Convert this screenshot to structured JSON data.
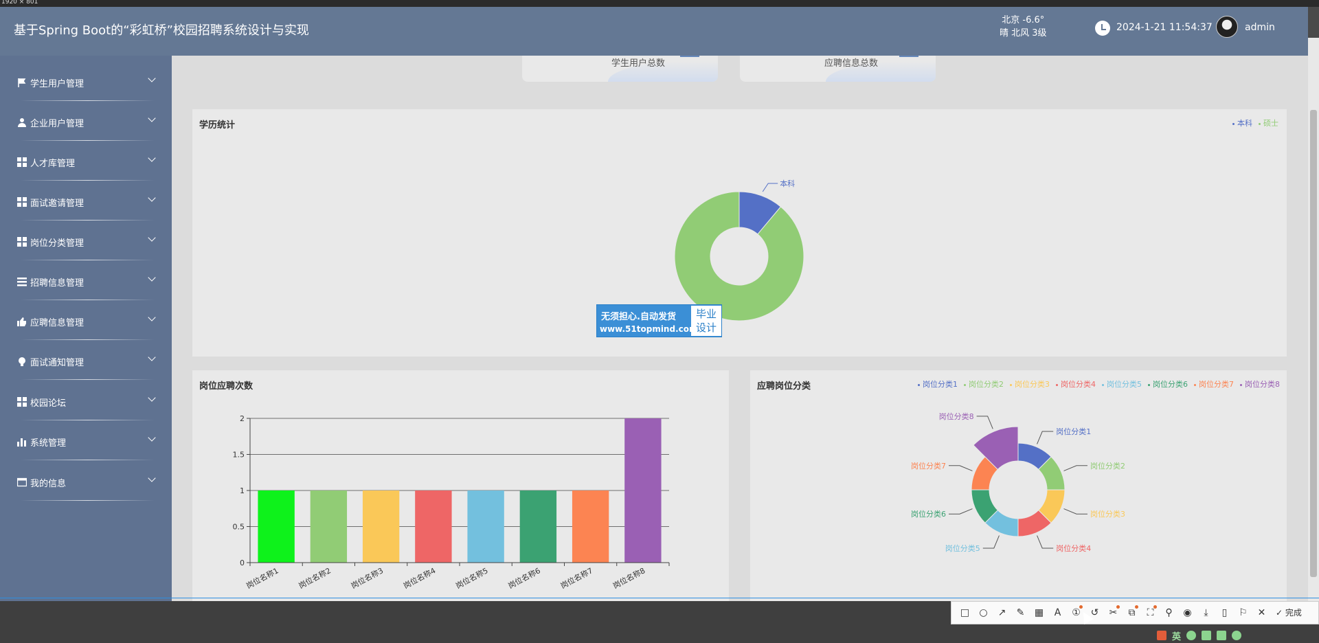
{
  "screen": {
    "size_label": "1920 × 801"
  },
  "header": {
    "title": "基于Spring Boot的“彩虹桥”校园招聘系统设计与实现",
    "weather_city_temp": "北京  -6.6°",
    "weather_desc": "晴  北风  3级",
    "datetime": "2024-1-21 11:54:37",
    "username": "admin"
  },
  "sidebar": {
    "items": [
      {
        "label": "学生用户管理",
        "icon": "flag-icon"
      },
      {
        "label": "企业用户管理",
        "icon": "user-icon"
      },
      {
        "label": "人才库管理",
        "icon": "grid-icon"
      },
      {
        "label": "面试邀请管理",
        "icon": "grid-icon"
      },
      {
        "label": "岗位分类管理",
        "icon": "grid-icon"
      },
      {
        "label": "招聘信息管理",
        "icon": "list-icon"
      },
      {
        "label": "应聘信息管理",
        "icon": "thumb-icon"
      },
      {
        "label": "面试通知管理",
        "icon": "bulb-icon"
      },
      {
        "label": "校园论坛",
        "icon": "grid-icon"
      },
      {
        "label": "系统管理",
        "icon": "bar-chart-icon"
      },
      {
        "label": "我的信息",
        "icon": "card-icon"
      }
    ]
  },
  "stats": {
    "student_total_label": "学生用户总数",
    "recruit_total_label": "应聘信息总数"
  },
  "watermark": {
    "line1": "无须担心.自动发货",
    "line2": "www.51topmind.com",
    "badge": "毕业设计"
  },
  "toolbar": {
    "tools": [
      "rect-icon",
      "circle-icon",
      "arrow-icon",
      "pen-icon",
      "mosaic-icon",
      "text-icon",
      "number-icon",
      "undo-icon",
      "cut-icon",
      "copy-icon",
      "scan-icon",
      "pin-icon",
      "record-icon",
      "download-icon",
      "bookmark-icon",
      "flag-icon",
      "close-icon"
    ],
    "done_label": "完成"
  },
  "taskbar": {
    "ime": "英"
  },
  "colors": {
    "header_bg": "#647894",
    "sidebar_bg": "#5f7291",
    "main_bg": "#dcdcdc",
    "panel_bg": "#e9e9e9",
    "blue": "#5470c6",
    "green": "#91cc75",
    "yellow": "#fac858",
    "red": "#ee6666",
    "cyan": "#73c0de",
    "teal": "#3ba272",
    "orange": "#fc8452",
    "purple": "#9a60b4",
    "bright_green": "#0ef21b"
  },
  "chart_data": [
    {
      "type": "pie",
      "title": "学历统计",
      "legend": [
        "本科",
        "硕士"
      ],
      "legend_position": "top-right",
      "donut": true,
      "slices": [
        {
          "name": "本科",
          "value": 1,
          "show_label": true
        },
        {
          "name": "硕士",
          "value": 8,
          "show_label": false
        }
      ]
    },
    {
      "type": "bar",
      "title": "岗位应聘次数",
      "categories": [
        "岗位名称1",
        "岗位名称2",
        "岗位名称3",
        "岗位名称4",
        "岗位名称5",
        "岗位名称6",
        "岗位名称7",
        "岗位名称8"
      ],
      "values": [
        1,
        1,
        1,
        1,
        1,
        1,
        1,
        2
      ],
      "ylim": [
        0,
        2
      ],
      "yticks": [
        "0",
        "0.5",
        "1",
        "1.5",
        "2"
      ],
      "grid": true,
      "xlabel": "",
      "ylabel": ""
    },
    {
      "type": "pie",
      "title": "应聘岗位分类",
      "rose": true,
      "donut": true,
      "legend_position": "top-right",
      "slices": [
        {
          "name": "岗位分类1",
          "value": 1
        },
        {
          "name": "岗位分类2",
          "value": 1
        },
        {
          "name": "岗位分类3",
          "value": 1
        },
        {
          "name": "岗位分类4",
          "value": 1
        },
        {
          "name": "岗位分类5",
          "value": 1
        },
        {
          "name": "岗位分类6",
          "value": 1
        },
        {
          "name": "岗位分类7",
          "value": 1
        },
        {
          "name": "岗位分类8",
          "value": 2
        }
      ]
    }
  ]
}
